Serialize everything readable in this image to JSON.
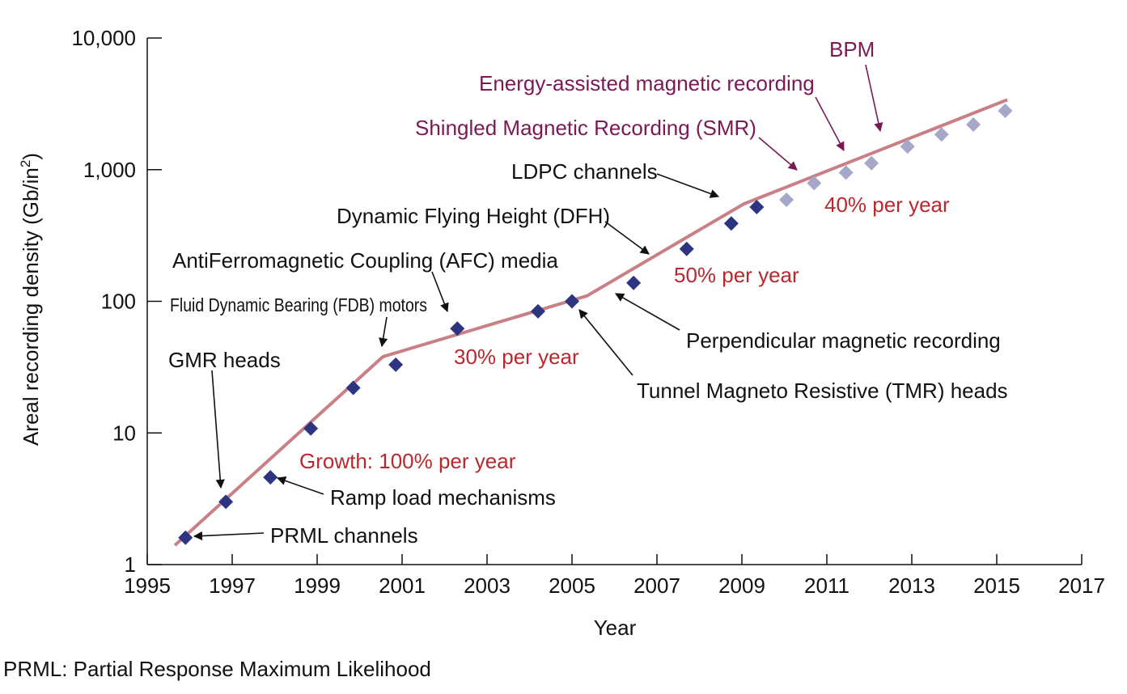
{
  "chart_data": {
    "type": "scatter",
    "ylabel_main": "Areal recording density (Gb/in",
    "ylabel_sup": "2",
    "ylabel_end": ")",
    "xlabel": "Year",
    "xlim": [
      1995,
      2017
    ],
    "ylim": [
      1,
      10000
    ],
    "yscale": "log",
    "xticks": [
      "1995",
      "1997",
      "1999",
      "2001",
      "2003",
      "2005",
      "2007",
      "2009",
      "2011",
      "2013",
      "2015",
      "2017"
    ],
    "yticks": [
      "1",
      "10",
      "100",
      "1,000",
      "10,000"
    ],
    "colors": {
      "trend": "#c97f86",
      "actual": "#2d3580",
      "projected": "#a5a8c8",
      "purple_label": "#7a1a55",
      "red_label": "#b8282e",
      "arrow_purple": "#7a1a55",
      "arrow_black": "#111111"
    },
    "trend_line": [
      {
        "x": 1995.65,
        "y": 1.4
      },
      {
        "x": 2000.55,
        "y": 38
      },
      {
        "x": 2005.35,
        "y": 110
      },
      {
        "x": 2009.05,
        "y": 550
      },
      {
        "x": 2015.25,
        "y": 3400
      }
    ],
    "series": [
      {
        "style": "actual",
        "points": [
          {
            "x": 1995.9,
            "y": 1.6
          },
          {
            "x": 1996.85,
            "y": 3.0
          },
          {
            "x": 1997.9,
            "y": 4.6
          },
          {
            "x": 1998.85,
            "y": 10.8
          },
          {
            "x": 1999.85,
            "y": 22
          },
          {
            "x": 2000.85,
            "y": 33
          },
          {
            "x": 2002.3,
            "y": 62
          },
          {
            "x": 2004.2,
            "y": 84
          },
          {
            "x": 2005.0,
            "y": 100
          },
          {
            "x": 2006.45,
            "y": 138
          },
          {
            "x": 2007.7,
            "y": 250
          },
          {
            "x": 2008.75,
            "y": 390
          },
          {
            "x": 2009.35,
            "y": 520
          }
        ]
      },
      {
        "style": "projected",
        "points": [
          {
            "x": 2010.05,
            "y": 590
          },
          {
            "x": 2010.7,
            "y": 790
          },
          {
            "x": 2011.45,
            "y": 950
          },
          {
            "x": 2012.05,
            "y": 1120
          },
          {
            "x": 2012.9,
            "y": 1500
          },
          {
            "x": 2013.7,
            "y": 1850
          },
          {
            "x": 2014.45,
            "y": 2200
          },
          {
            "x": 2015.2,
            "y": 2800
          }
        ]
      }
    ],
    "annotations": [
      {
        "id": "bpm",
        "text": "BPM",
        "color": "purple"
      },
      {
        "id": "energy",
        "text": "Energy-assisted magnetic recording",
        "color": "purple"
      },
      {
        "id": "smr",
        "text": "Shingled Magnetic Recording (SMR)",
        "color": "purple"
      },
      {
        "id": "ldpc",
        "text": "LDPC channels",
        "color": "black"
      },
      {
        "id": "dfh",
        "text": "Dynamic Flying Height (DFH)",
        "color": "black"
      },
      {
        "id": "afc",
        "text": "AntiFerromagnetic Coupling (AFC) media",
        "color": "black"
      },
      {
        "id": "fdb",
        "text": "Fluid Dynamic Bearing (FDB) motors",
        "color": "black"
      },
      {
        "id": "gmr",
        "text": "GMR heads",
        "color": "black"
      },
      {
        "id": "perp",
        "text": "Perpendicular magnetic recording",
        "color": "black"
      },
      {
        "id": "tmr",
        "text": "Tunnel Magneto Resistive (TMR) heads",
        "color": "black"
      },
      {
        "id": "ramp",
        "text": "Ramp load mechanisms",
        "color": "black"
      },
      {
        "id": "prml",
        "text": "PRML channels",
        "color": "black"
      },
      {
        "id": "r40",
        "text": "40% per year",
        "color": "red"
      },
      {
        "id": "r50",
        "text": "50% per year",
        "color": "red"
      },
      {
        "id": "r30",
        "text": "30% per year",
        "color": "red"
      },
      {
        "id": "r100",
        "text": "Growth: 100% per year",
        "color": "red"
      }
    ]
  },
  "footnote": "PRML: Partial Response Maximum Likelihood"
}
